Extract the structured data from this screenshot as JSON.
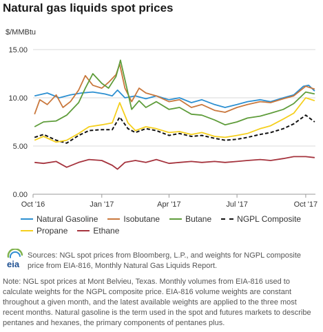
{
  "title": "Natural gas liquids spot prices",
  "chart_data": {
    "type": "line",
    "ylabel": "$/MMBtu",
    "ylim": [
      0,
      15
    ],
    "yticks": [
      "0.00",
      "5.00",
      "10.00",
      "15.00"
    ],
    "x_range": [
      "2016-10-01",
      "2017-10-14"
    ],
    "xticks": [
      {
        "label": "Oct '16",
        "date": "2016-10-01"
      },
      {
        "label": "Jan '17",
        "date": "2017-01-01"
      },
      {
        "label": "Apr '17",
        "date": "2017-04-01"
      },
      {
        "label": "Jul '17",
        "date": "2017-07-01"
      },
      {
        "label": "Oct '17",
        "date": "2017-10-01"
      }
    ],
    "grid": "horizontal",
    "legend_position": "bottom",
    "series": [
      {
        "name": "Natural Gasoline",
        "color": "#2b8fd1",
        "dash": false,
        "points": [
          [
            "2016-10-03",
            10.2
          ],
          [
            "2016-10-20",
            10.5
          ],
          [
            "2016-11-05",
            10.0
          ],
          [
            "2016-11-20",
            10.3
          ],
          [
            "2016-12-05",
            10.5
          ],
          [
            "2016-12-20",
            10.6
          ],
          [
            "2017-01-05",
            10.4
          ],
          [
            "2017-01-15",
            10.2
          ],
          [
            "2017-01-22",
            10.8
          ],
          [
            "2017-02-01",
            10.0
          ],
          [
            "2017-02-15",
            10.2
          ],
          [
            "2017-03-01",
            9.9
          ],
          [
            "2017-03-15",
            10.2
          ],
          [
            "2017-04-01",
            9.8
          ],
          [
            "2017-04-15",
            10.0
          ],
          [
            "2017-05-01",
            9.5
          ],
          [
            "2017-05-15",
            9.8
          ],
          [
            "2017-06-01",
            9.3
          ],
          [
            "2017-06-15",
            9.0
          ],
          [
            "2017-07-01",
            9.3
          ],
          [
            "2017-07-15",
            9.6
          ],
          [
            "2017-08-01",
            9.8
          ],
          [
            "2017-08-15",
            9.6
          ],
          [
            "2017-09-01",
            10.0
          ],
          [
            "2017-09-15",
            10.3
          ],
          [
            "2017-09-28",
            11.2
          ],
          [
            "2017-10-05",
            11.3
          ],
          [
            "2017-10-13",
            10.7
          ]
        ]
      },
      {
        "name": "Isobutane",
        "color": "#c9773c",
        "dash": false,
        "points": [
          [
            "2016-10-03",
            8.3
          ],
          [
            "2016-10-10",
            9.8
          ],
          [
            "2016-10-20",
            9.3
          ],
          [
            "2016-11-01",
            10.3
          ],
          [
            "2016-11-10",
            9.0
          ],
          [
            "2016-11-20",
            9.6
          ],
          [
            "2016-12-01",
            10.8
          ],
          [
            "2016-12-10",
            12.3
          ],
          [
            "2016-12-20",
            11.3
          ],
          [
            "2017-01-01",
            11.0
          ],
          [
            "2017-01-10",
            11.6
          ],
          [
            "2017-01-20",
            12.4
          ],
          [
            "2017-01-25",
            13.5
          ],
          [
            "2017-02-01",
            11.0
          ],
          [
            "2017-02-10",
            9.6
          ],
          [
            "2017-02-20",
            11.0
          ],
          [
            "2017-03-01",
            10.5
          ],
          [
            "2017-03-15",
            10.2
          ],
          [
            "2017-04-01",
            9.6
          ],
          [
            "2017-04-15",
            9.8
          ],
          [
            "2017-05-01",
            9.0
          ],
          [
            "2017-05-15",
            9.3
          ],
          [
            "2017-06-01",
            8.7
          ],
          [
            "2017-06-15",
            8.5
          ],
          [
            "2017-07-01",
            9.0
          ],
          [
            "2017-07-15",
            9.3
          ],
          [
            "2017-08-01",
            9.6
          ],
          [
            "2017-08-15",
            9.5
          ],
          [
            "2017-09-01",
            9.9
          ],
          [
            "2017-09-15",
            10.2
          ],
          [
            "2017-10-01",
            11.2
          ],
          [
            "2017-10-13",
            10.9
          ]
        ]
      },
      {
        "name": "Butane",
        "color": "#5e9c3a",
        "dash": false,
        "points": [
          [
            "2016-10-03",
            7.0
          ],
          [
            "2016-10-15",
            7.5
          ],
          [
            "2016-11-01",
            7.6
          ],
          [
            "2016-11-15",
            8.2
          ],
          [
            "2016-12-01",
            9.5
          ],
          [
            "2016-12-10",
            11.0
          ],
          [
            "2016-12-20",
            12.5
          ],
          [
            "2017-01-01",
            11.5
          ],
          [
            "2017-01-10",
            11.0
          ],
          [
            "2017-01-20",
            12.2
          ],
          [
            "2017-01-26",
            13.9
          ],
          [
            "2017-02-05",
            10.5
          ],
          [
            "2017-02-10",
            8.8
          ],
          [
            "2017-02-20",
            9.7
          ],
          [
            "2017-03-01",
            9.0
          ],
          [
            "2017-03-15",
            9.6
          ],
          [
            "2017-04-01",
            8.8
          ],
          [
            "2017-04-15",
            9.0
          ],
          [
            "2017-05-01",
            8.3
          ],
          [
            "2017-05-15",
            8.2
          ],
          [
            "2017-06-01",
            7.7
          ],
          [
            "2017-06-15",
            7.2
          ],
          [
            "2017-07-01",
            7.5
          ],
          [
            "2017-07-15",
            7.9
          ],
          [
            "2017-08-01",
            8.1
          ],
          [
            "2017-08-15",
            8.4
          ],
          [
            "2017-09-01",
            8.8
          ],
          [
            "2017-09-15",
            9.4
          ],
          [
            "2017-10-01",
            10.6
          ],
          [
            "2017-10-13",
            10.4
          ]
        ]
      },
      {
        "name": "NGPL Composite",
        "color": "#111111",
        "dash": true,
        "points": [
          [
            "2016-10-03",
            5.9
          ],
          [
            "2016-10-15",
            6.2
          ],
          [
            "2016-11-01",
            5.6
          ],
          [
            "2016-11-15",
            5.3
          ],
          [
            "2016-12-01",
            6.1
          ],
          [
            "2016-12-15",
            6.6
          ],
          [
            "2017-01-01",
            6.7
          ],
          [
            "2017-01-15",
            6.7
          ],
          [
            "2017-01-25",
            8.0
          ],
          [
            "2017-02-05",
            6.8
          ],
          [
            "2017-02-15",
            6.4
          ],
          [
            "2017-03-01",
            6.8
          ],
          [
            "2017-03-15",
            6.6
          ],
          [
            "2017-04-01",
            6.1
          ],
          [
            "2017-04-15",
            6.3
          ],
          [
            "2017-05-01",
            6.0
          ],
          [
            "2017-05-15",
            6.1
          ],
          [
            "2017-06-01",
            5.8
          ],
          [
            "2017-06-15",
            5.6
          ],
          [
            "2017-07-01",
            5.7
          ],
          [
            "2017-07-15",
            5.9
          ],
          [
            "2017-08-01",
            6.2
          ],
          [
            "2017-08-15",
            6.4
          ],
          [
            "2017-09-01",
            6.8
          ],
          [
            "2017-09-15",
            7.3
          ],
          [
            "2017-10-01",
            8.2
          ],
          [
            "2017-10-13",
            7.5
          ]
        ]
      },
      {
        "name": "Propane",
        "color": "#f5cf1c",
        "dash": false,
        "points": [
          [
            "2016-10-03",
            5.6
          ],
          [
            "2016-10-15",
            6.0
          ],
          [
            "2016-11-01",
            5.4
          ],
          [
            "2016-11-15",
            5.6
          ],
          [
            "2016-12-01",
            6.3
          ],
          [
            "2016-12-15",
            7.0
          ],
          [
            "2017-01-01",
            7.2
          ],
          [
            "2017-01-15",
            7.4
          ],
          [
            "2017-01-25",
            9.5
          ],
          [
            "2017-02-05",
            7.4
          ],
          [
            "2017-02-15",
            6.6
          ],
          [
            "2017-03-01",
            7.0
          ],
          [
            "2017-03-15",
            6.8
          ],
          [
            "2017-04-01",
            6.4
          ],
          [
            "2017-04-15",
            6.5
          ],
          [
            "2017-05-01",
            6.2
          ],
          [
            "2017-05-15",
            6.4
          ],
          [
            "2017-06-01",
            6.0
          ],
          [
            "2017-06-15",
            5.9
          ],
          [
            "2017-07-01",
            6.1
          ],
          [
            "2017-07-15",
            6.3
          ],
          [
            "2017-08-01",
            6.8
          ],
          [
            "2017-08-15",
            7.1
          ],
          [
            "2017-09-01",
            7.8
          ],
          [
            "2017-09-15",
            8.4
          ],
          [
            "2017-10-01",
            10.0
          ],
          [
            "2017-10-13",
            9.7
          ]
        ]
      },
      {
        "name": "Ethane",
        "color": "#a5333d",
        "dash": false,
        "points": [
          [
            "2016-10-03",
            3.3
          ],
          [
            "2016-10-15",
            3.2
          ],
          [
            "2016-11-01",
            3.4
          ],
          [
            "2016-11-15",
            2.8
          ],
          [
            "2016-12-01",
            3.3
          ],
          [
            "2016-12-15",
            3.6
          ],
          [
            "2017-01-01",
            3.5
          ],
          [
            "2017-01-15",
            3.0
          ],
          [
            "2017-01-22",
            2.6
          ],
          [
            "2017-02-01",
            3.3
          ],
          [
            "2017-02-15",
            3.5
          ],
          [
            "2017-03-01",
            3.3
          ],
          [
            "2017-03-15",
            3.6
          ],
          [
            "2017-04-01",
            3.2
          ],
          [
            "2017-04-15",
            3.3
          ],
          [
            "2017-05-01",
            3.4
          ],
          [
            "2017-05-15",
            3.3
          ],
          [
            "2017-06-01",
            3.4
          ],
          [
            "2017-06-15",
            3.3
          ],
          [
            "2017-07-01",
            3.4
          ],
          [
            "2017-07-15",
            3.5
          ],
          [
            "2017-08-01",
            3.6
          ],
          [
            "2017-08-15",
            3.5
          ],
          [
            "2017-09-01",
            3.7
          ],
          [
            "2017-09-15",
            3.9
          ],
          [
            "2017-10-01",
            3.9
          ],
          [
            "2017-10-13",
            3.8
          ]
        ]
      }
    ]
  },
  "legend_rows": [
    [
      {
        "name": "Natural Gasoline",
        "color": "#2b8fd1",
        "dash": false
      },
      {
        "name": "Isobutane",
        "color": "#c9773c",
        "dash": false
      },
      {
        "name": "Butane",
        "color": "#5e9c3a",
        "dash": false
      },
      {
        "name": "NGPL Composite",
        "color": "#111111",
        "dash": true
      }
    ],
    [
      {
        "name": "Propane",
        "color": "#f5cf1c",
        "dash": false
      },
      {
        "name": "Ethane",
        "color": "#a5333d",
        "dash": false
      }
    ]
  ],
  "logo_text": "eia",
  "sources": "Sources: NGL spot prices from Bloomberg, L.P., and weights for NGPL composite price from EIA-816, Monthly Natural Gas Liquids Report.",
  "note": "Note: NGL spot prices at Mont Belvieu, Texas. Monthly volumes from EIA-816 used to calculate weights for the NGPL composite price. EIA-816 volume weights are constant throughout a given month, and the latest available weights are applied to the three most recent months. Natural gasoline is the term used in the spot and futures markets to describe pentanes and hexanes, the primary components of pentanes plus."
}
